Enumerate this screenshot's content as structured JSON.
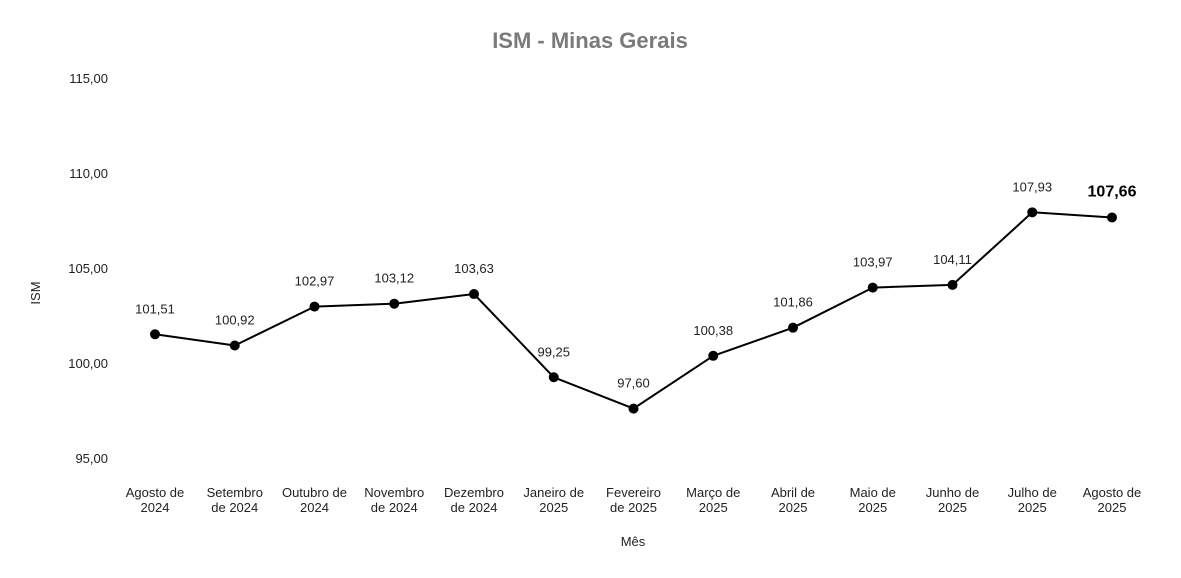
{
  "chart_data": {
    "type": "line",
    "title": "ISM - Minas Gerais",
    "xlabel": "Mês",
    "ylabel": "ISM",
    "ylim": [
      95,
      115
    ],
    "yticks": [
      "95,00",
      "100,00",
      "105,00",
      "110,00",
      "115,00"
    ],
    "ytick_values": [
      95,
      100,
      105,
      110,
      115
    ],
    "grid": false,
    "line_color": "#000000",
    "categories": [
      [
        "Agosto de",
        "2024"
      ],
      [
        "Setembro",
        "de 2024"
      ],
      [
        "Outubro de",
        "2024"
      ],
      [
        "Novembro",
        "de 2024"
      ],
      [
        "Dezembro",
        "de 2024"
      ],
      [
        "Janeiro de",
        "2025"
      ],
      [
        "Fevereiro",
        "de 2025"
      ],
      [
        "Março de",
        "2025"
      ],
      [
        "Abril de",
        "2025"
      ],
      [
        "Maio de",
        "2025"
      ],
      [
        "Junho de",
        "2025"
      ],
      [
        "Julho de",
        "2025"
      ],
      [
        "Agosto de",
        "2025"
      ]
    ],
    "values": [
      101.51,
      100.92,
      102.97,
      103.12,
      103.63,
      99.25,
      97.6,
      100.38,
      101.86,
      103.97,
      104.11,
      107.93,
      107.66
    ],
    "data_labels": [
      "101,51",
      "100,92",
      "102,97",
      "103,12",
      "103,63",
      "99,25",
      "97,60",
      "100,38",
      "101,86",
      "103,97",
      "104,11",
      "107,93",
      "107,66"
    ],
    "highlight_last": true
  }
}
